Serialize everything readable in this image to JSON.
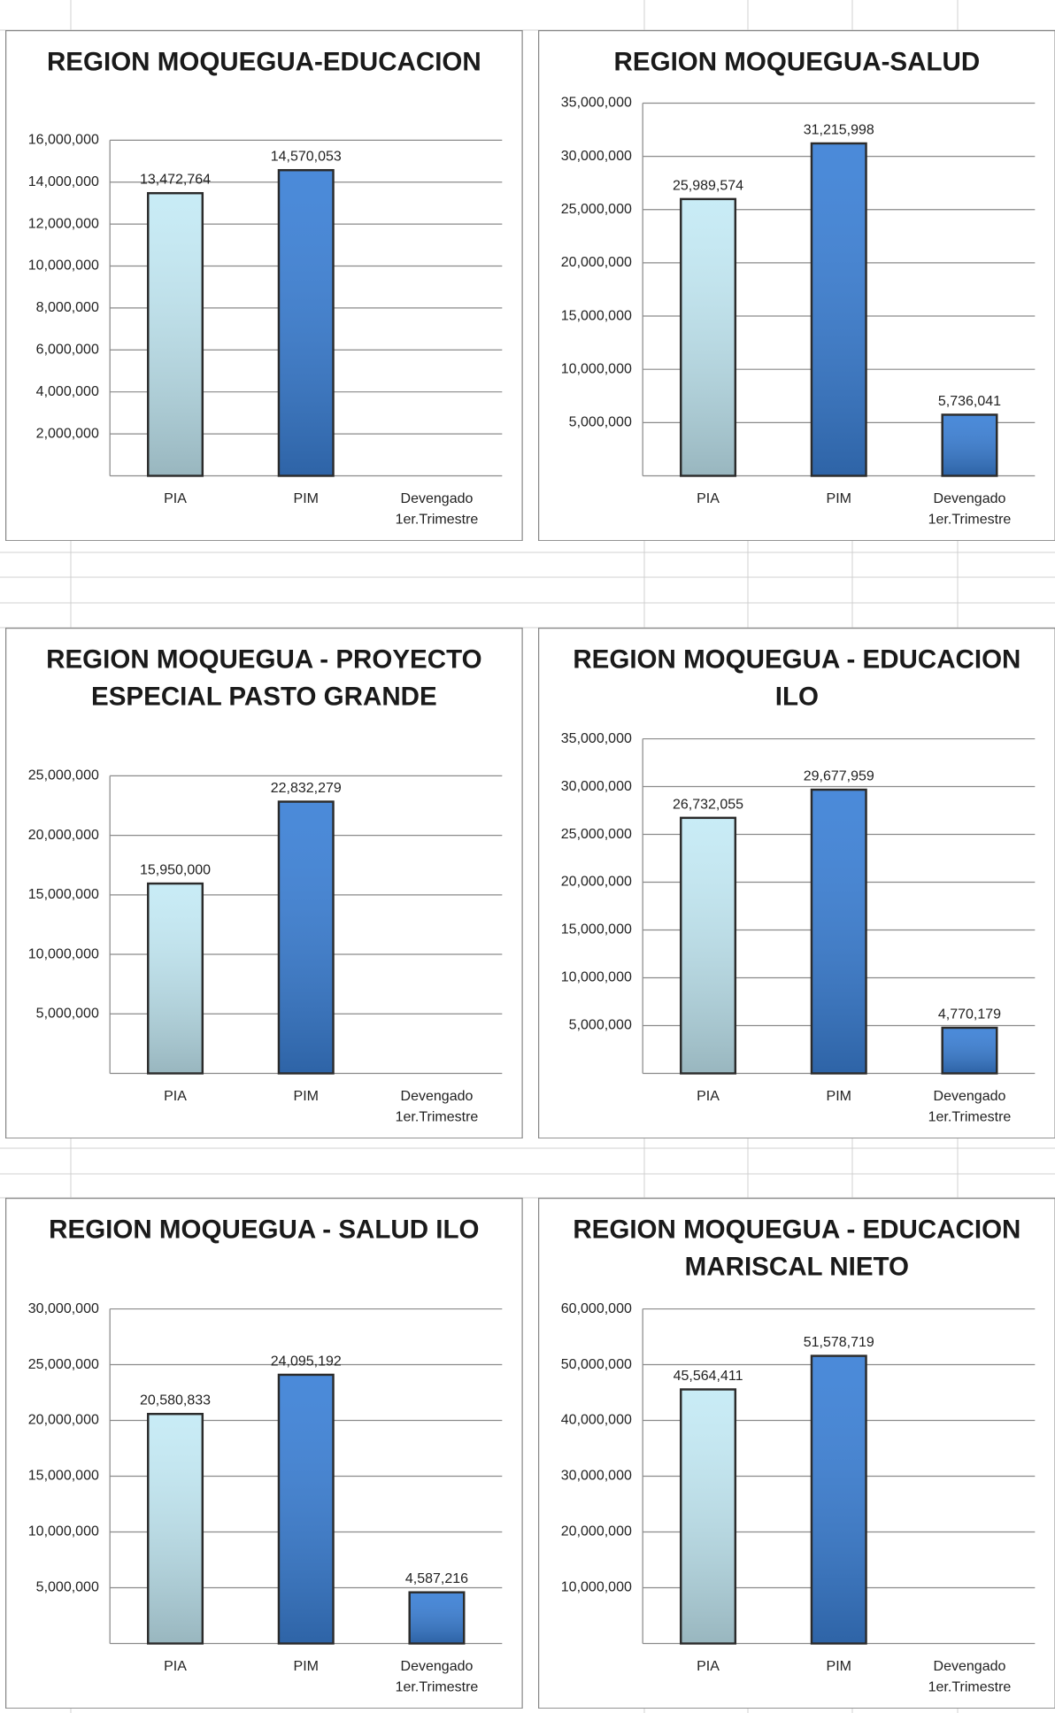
{
  "chart_data": [
    {
      "type": "bar",
      "title": "REGION MOQUEGUA-EDUCACION",
      "categories": [
        "PIA",
        "PIM",
        "Devengado 1er.Trimestre"
      ],
      "values": [
        13472764,
        14570053,
        null
      ],
      "value_labels": [
        "13,472,764",
        "14,570,053",
        null
      ],
      "colors": [
        "#c4eaf5",
        "#3b80d6",
        "#3b80d6"
      ],
      "ylim": [
        0,
        16000000
      ],
      "yticks": [
        {
          "value": 2000000,
          "label": "2,000,000"
        },
        {
          "value": 4000000,
          "label": "4,000,000"
        },
        {
          "value": 6000000,
          "label": "6,000,000"
        },
        {
          "value": 8000000,
          "label": "8,000,000"
        },
        {
          "value": 10000000,
          "label": "10,000,000"
        },
        {
          "value": 12000000,
          "label": "12,000,000"
        },
        {
          "value": 14000000,
          "label": "14,000,000"
        },
        {
          "value": 16000000,
          "label": "16,000,000"
        }
      ],
      "grid": true
    },
    {
      "type": "bar",
      "title": "REGION MOQUEGUA-SALUD",
      "categories": [
        "PIA",
        "PIM",
        "Devengado 1er.Trimestre"
      ],
      "values": [
        25989574,
        31215998,
        5736041
      ],
      "value_labels": [
        "25,989,574",
        "31,215,998",
        "5,736,041"
      ],
      "colors": [
        "#c4eaf5",
        "#3b80d6",
        "#3b80d6"
      ],
      "ylim": [
        0,
        35000000
      ],
      "yticks": [
        {
          "value": 5000000,
          "label": "5,000,000"
        },
        {
          "value": 10000000,
          "label": "10,000,000"
        },
        {
          "value": 15000000,
          "label": "15,000,000"
        },
        {
          "value": 20000000,
          "label": "20,000,000"
        },
        {
          "value": 25000000,
          "label": "25,000,000"
        },
        {
          "value": 30000000,
          "label": "30,000,000"
        },
        {
          "value": 35000000,
          "label": "35,000,000"
        }
      ],
      "grid": true
    },
    {
      "type": "bar",
      "title": "REGION MOQUEGUA - PROYECTO ESPECIAL PASTO GRANDE",
      "categories": [
        "PIA",
        "PIM",
        "Devengado 1er.Trimestre"
      ],
      "values": [
        15950000,
        22832279,
        null
      ],
      "value_labels": [
        "15,950,000",
        "22,832,279",
        null
      ],
      "colors": [
        "#c4eaf5",
        "#3b80d6",
        "#3b80d6"
      ],
      "ylim": [
        0,
        25000000
      ],
      "yticks": [
        {
          "value": 5000000,
          "label": "5,000,000"
        },
        {
          "value": 10000000,
          "label": "10,000,000"
        },
        {
          "value": 15000000,
          "label": "15,000,000"
        },
        {
          "value": 20000000,
          "label": "20,000,000"
        },
        {
          "value": 25000000,
          "label": "25,000,000"
        }
      ],
      "grid": true
    },
    {
      "type": "bar",
      "title": "REGION MOQUEGUA - EDUCACION ILO",
      "categories": [
        "PIA",
        "PIM",
        "Devengado 1er.Trimestre"
      ],
      "values": [
        26732055,
        29677959,
        4770179
      ],
      "value_labels": [
        "26,732,055",
        "29,677,959",
        "4,770,179"
      ],
      "colors": [
        "#c4eaf5",
        "#3b80d6",
        "#3b80d6"
      ],
      "ylim": [
        0,
        35000000
      ],
      "yticks": [
        {
          "value": 5000000,
          "label": "5,000,000"
        },
        {
          "value": 10000000,
          "label": "10,000,000"
        },
        {
          "value": 15000000,
          "label": "15,000,000"
        },
        {
          "value": 20000000,
          "label": "20,000,000"
        },
        {
          "value": 25000000,
          "label": "25,000,000"
        },
        {
          "value": 30000000,
          "label": "30,000,000"
        },
        {
          "value": 35000000,
          "label": "35,000,000"
        }
      ],
      "grid": true
    },
    {
      "type": "bar",
      "title": "REGION MOQUEGUA - SALUD ILO",
      "categories": [
        "PIA",
        "PIM",
        "Devengado 1er.Trimestre"
      ],
      "values": [
        20580833,
        24095192,
        4587216
      ],
      "value_labels": [
        "20,580,833",
        "24,095,192",
        "4,587,216"
      ],
      "colors": [
        "#c4eaf5",
        "#3b80d6",
        "#3b80d6"
      ],
      "ylim": [
        0,
        30000000
      ],
      "yticks": [
        {
          "value": 5000000,
          "label": "5,000,000"
        },
        {
          "value": 10000000,
          "label": "10,000,000"
        },
        {
          "value": 15000000,
          "label": "15,000,000"
        },
        {
          "value": 20000000,
          "label": "20,000,000"
        },
        {
          "value": 25000000,
          "label": "25,000,000"
        },
        {
          "value": 30000000,
          "label": "30,000,000"
        }
      ],
      "grid": true
    },
    {
      "type": "bar",
      "title": "REGION MOQUEGUA - EDUCACION MARISCAL NIETO",
      "categories": [
        "PIA",
        "PIM",
        "Devengado 1er.Trimestre"
      ],
      "values": [
        45564411,
        51578719,
        null
      ],
      "value_labels": [
        "45,564,411",
        "51,578,719",
        null
      ],
      "colors": [
        "#c4eaf5",
        "#3b80d6",
        "#3b80d6"
      ],
      "ylim": [
        0,
        60000000
      ],
      "yticks": [
        {
          "value": 10000000,
          "label": "10,000,000"
        },
        {
          "value": 20000000,
          "label": "20,000,000"
        },
        {
          "value": 30000000,
          "label": "30,000,000"
        },
        {
          "value": 40000000,
          "label": "40,000,000"
        },
        {
          "value": 50000000,
          "label": "50,000,000"
        },
        {
          "value": 60000000,
          "label": "60,000,000"
        }
      ],
      "grid": true
    }
  ]
}
